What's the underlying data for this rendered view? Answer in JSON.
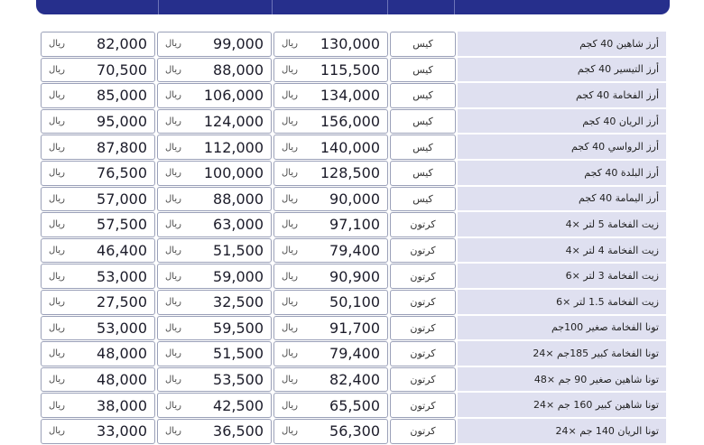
{
  "currency": "ريال",
  "rows": [
    {
      "name": "أرز شاهين 40 كجم",
      "unit": "كيس",
      "p1": "130,000",
      "p2": "99,000",
      "p3": "82,000"
    },
    {
      "name": "أرز التيسير 40 كجم",
      "unit": "كيس",
      "p1": "115,500",
      "p2": "88,000",
      "p3": "70,500"
    },
    {
      "name": "أرز الفخامة 40 كجم",
      "unit": "كيس",
      "p1": "134,000",
      "p2": "106,000",
      "p3": "85,000"
    },
    {
      "name": "أرز الريان 40 كجم",
      "unit": "كيس",
      "p1": "156,000",
      "p2": "124,000",
      "p3": "95,000"
    },
    {
      "name": "أرز الرواسي 40 كجم",
      "unit": "كيس",
      "p1": "140,000",
      "p2": "112,000",
      "p3": "87,800"
    },
    {
      "name": "أرز البلدة 40 كجم",
      "unit": "كيس",
      "p1": "128,500",
      "p2": "100,000",
      "p3": "76,500"
    },
    {
      "name": "أرز اليمامة 40 كجم",
      "unit": "كيس",
      "p1": "90,000",
      "p2": "88,000",
      "p3": "57,000"
    },
    {
      "name": "زيت الفخامة 5 لتر ×4",
      "unit": "كرتون",
      "p1": "97,100",
      "p2": "63,000",
      "p3": "57,500"
    },
    {
      "name": "زيت الفخامة 4 لتر ×4",
      "unit": "كرتون",
      "p1": "79,400",
      "p2": "51,500",
      "p3": "46,400"
    },
    {
      "name": "زيت الفخامة 3 لتر ×6",
      "unit": "كرتون",
      "p1": "90,900",
      "p2": "59,000",
      "p3": "53,000"
    },
    {
      "name": "زيت الفخامة 1.5 لتر ×6",
      "unit": "كرتون",
      "p1": "50,100",
      "p2": "32,500",
      "p3": "27,500"
    },
    {
      "name": "تونا الفخامة صغير 100جم",
      "unit": "كرتون",
      "p1": "91,700",
      "p2": "59,500",
      "p3": "53,000"
    },
    {
      "name": "تونا الفخامة كبير 185جم ×24",
      "unit": "كرتون",
      "p1": "79,400",
      "p2": "51,500",
      "p3": "48,000"
    },
    {
      "name": "تونا شاهين صغير 90 جم ×48",
      "unit": "كرتون",
      "p1": "82,400",
      "p2": "53,500",
      "p3": "48,000"
    },
    {
      "name": "تونا شاهين كبير 160 جم ×24",
      "unit": "كرتون",
      "p1": "65,500",
      "p2": "42,500",
      "p3": "38,000"
    },
    {
      "name": "تونا الريان 140 جم ×24",
      "unit": "كرتون",
      "p1": "56,300",
      "p2": "36,500",
      "p3": "33,000"
    }
  ]
}
